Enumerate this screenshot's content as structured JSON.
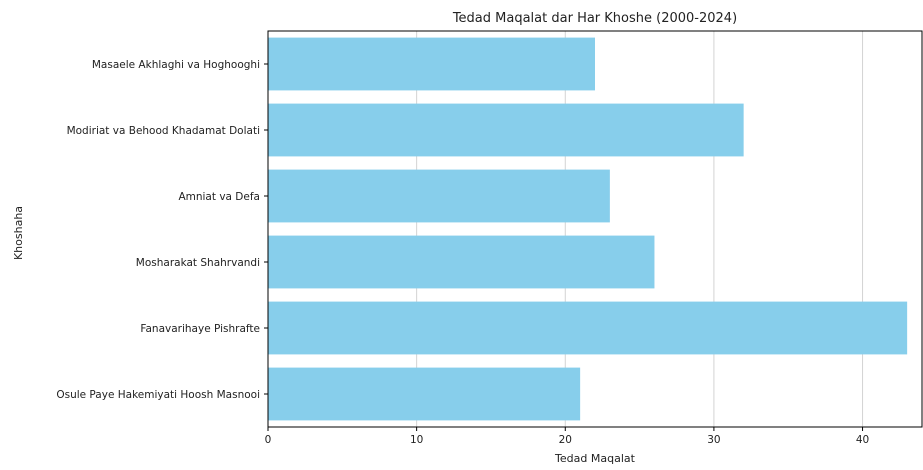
{
  "chart_data": {
    "type": "bar",
    "orientation": "horizontal",
    "title": "Tedad Maqalat dar Har Khoshe (2000-2024)",
    "xlabel": "Tedad Maqalat",
    "ylabel": "Khoshaha",
    "categories": [
      "Osule Paye Hakemiyati Hoosh Masnooi",
      "Fanavarihaye Pishrafte",
      "Mosharakat Shahrvandi",
      "Amniat va Defa",
      "Modiriat va Behood Khadamat Dolati",
      "Masaele Akhlaghi va Hoghooghi"
    ],
    "values": [
      21,
      43,
      26,
      23,
      32,
      22
    ],
    "xlim": [
      0,
      44
    ],
    "xticks": [
      0,
      10,
      20,
      30,
      40
    ],
    "grid": "x-axis vertical lines",
    "bar_color": "#87ceeb"
  }
}
